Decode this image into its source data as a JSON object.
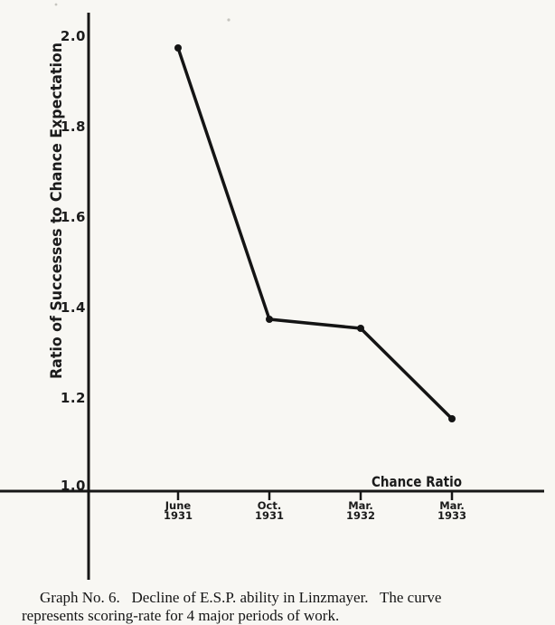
{
  "colors": {
    "background": "#f8f7f3",
    "ink": "#161616"
  },
  "chart_data": {
    "type": "line",
    "title": "",
    "ylabel": "Ratio of Successes to Chance Expectation",
    "xlabel": "Chance Ratio",
    "categories": [
      "June 1931",
      "Oct. 1931",
      "Mar. 1932",
      "Mar. 1933"
    ],
    "values": [
      1.98,
      1.38,
      1.36,
      1.16
    ],
    "ylim": [
      1.0,
      2.06
    ],
    "yticks": [
      2.0,
      1.8,
      1.6,
      1.4,
      1.2,
      1.0
    ],
    "ytick_labels": [
      "2.0",
      "1.8",
      "1.6",
      "1.4",
      "1.2",
      "1.0"
    ],
    "baseline_value": 1.0,
    "grid": false,
    "legend": null,
    "marker": "dot"
  },
  "caption": {
    "lines": [
      "Graph No. 6.   Decline of E.S.P. ability in Linzmayer.   The curve",
      "represents scoring-rate for 4 major periods of work."
    ]
  }
}
